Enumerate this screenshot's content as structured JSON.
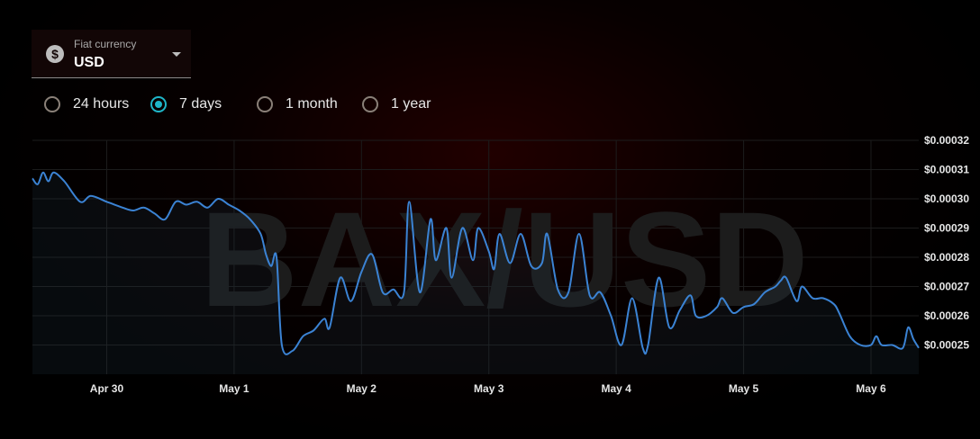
{
  "currency": {
    "label": "Fiat currency",
    "value": "USD",
    "icon": "dollar-icon",
    "icon_glyph": "$"
  },
  "ranges": [
    {
      "label": "24 hours",
      "selected": false
    },
    {
      "label": "7 days",
      "selected": true
    },
    {
      "label": "1 month",
      "selected": false
    },
    {
      "label": "1 year",
      "selected": false
    }
  ],
  "colors": {
    "line": "#3b83d4",
    "radio_selected": "#1fb6c9",
    "background": "#000000"
  },
  "chart_data": {
    "type": "line",
    "watermark": "BAX/USD",
    "grid": true,
    "y_axis_position": "right",
    "ylim": [
      0.00024,
      0.00032
    ],
    "y_ticks": [
      0.00025,
      0.00026,
      0.00027,
      0.00028,
      0.00029,
      0.0003,
      0.00031,
      0.00032
    ],
    "y_tick_labels": [
      "$0.00025",
      "$0.00026",
      "$0.00027",
      "$0.00028",
      "$0.00029",
      "$0.00030",
      "$0.00031",
      "$0.00032"
    ],
    "x_range": [
      "2024-04-29T10:00",
      "2024-05-06T09:00"
    ],
    "x_ticks": [
      "2024-04-30",
      "2024-05-01",
      "2024-05-02",
      "2024-05-03",
      "2024-05-04",
      "2024-05-05",
      "2024-05-06"
    ],
    "x_tick_labels": [
      "Apr 30",
      "May 1",
      "May 2",
      "May 3",
      "May 4",
      "May 5",
      "May 6"
    ],
    "series": [
      {
        "points": [
          [
            "2024-04-29T10:00",
            0.000307
          ],
          [
            "2024-04-29T11:00",
            0.000305
          ],
          [
            "2024-04-29T12:00",
            0.000309
          ],
          [
            "2024-04-29T13:00",
            0.000306
          ],
          [
            "2024-04-29T14:00",
            0.000309
          ],
          [
            "2024-04-29T16:00",
            0.000306
          ],
          [
            "2024-04-29T19:00",
            0.000299
          ],
          [
            "2024-04-29T21:00",
            0.000301
          ],
          [
            "2024-04-30T00:00",
            0.000299
          ],
          [
            "2024-04-30T03:00",
            0.000297
          ],
          [
            "2024-04-30T05:00",
            0.000296
          ],
          [
            "2024-04-30T07:00",
            0.000297
          ],
          [
            "2024-04-30T09:00",
            0.000295
          ],
          [
            "2024-04-30T11:00",
            0.000293
          ],
          [
            "2024-04-30T13:00",
            0.000299
          ],
          [
            "2024-04-30T15:00",
            0.000298
          ],
          [
            "2024-04-30T17:00",
            0.000299
          ],
          [
            "2024-04-30T19:00",
            0.000297
          ],
          [
            "2024-04-30T21:00",
            0.0003
          ],
          [
            "2024-04-30T23:00",
            0.000298
          ],
          [
            "2024-05-01T01:00",
            0.000296
          ],
          [
            "2024-05-01T03:00",
            0.000293
          ],
          [
            "2024-05-01T05:00",
            0.000288
          ],
          [
            "2024-05-01T06:00",
            0.000281
          ],
          [
            "2024-05-01T07:00",
            0.000277
          ],
          [
            "2024-05-01T08:00",
            0.00028
          ],
          [
            "2024-05-01T09:00",
            0.00025
          ],
          [
            "2024-05-01T11:00",
            0.000248
          ],
          [
            "2024-05-01T13:00",
            0.000253
          ],
          [
            "2024-05-01T15:00",
            0.000255
          ],
          [
            "2024-05-01T17:00",
            0.000259
          ],
          [
            "2024-05-01T18:00",
            0.000256
          ],
          [
            "2024-05-01T20:00",
            0.000273
          ],
          [
            "2024-05-01T22:00",
            0.000265
          ],
          [
            "2024-05-02T00:00",
            0.000275
          ],
          [
            "2024-05-02T02:00",
            0.000281
          ],
          [
            "2024-05-02T04:00",
            0.000268
          ],
          [
            "2024-05-02T06:00",
            0.000269
          ],
          [
            "2024-05-02T08:00",
            0.000268
          ],
          [
            "2024-05-02T09:00",
            0.000299
          ],
          [
            "2024-05-02T11:00",
            0.000268
          ],
          [
            "2024-05-02T13:00",
            0.000293
          ],
          [
            "2024-05-02T14:00",
            0.000279
          ],
          [
            "2024-05-02T16:00",
            0.00029
          ],
          [
            "2024-05-02T17:00",
            0.000273
          ],
          [
            "2024-05-02T19:00",
            0.00029
          ],
          [
            "2024-05-02T21:00",
            0.000279
          ],
          [
            "2024-05-02T22:00",
            0.00029
          ],
          [
            "2024-05-03T00:00",
            0.000282
          ],
          [
            "2024-05-03T01:00",
            0.000276
          ],
          [
            "2024-05-03T02:00",
            0.000288
          ],
          [
            "2024-05-03T04:00",
            0.000278
          ],
          [
            "2024-05-03T06:00",
            0.000288
          ],
          [
            "2024-05-03T08:00",
            0.000277
          ],
          [
            "2024-05-03T10:00",
            0.000278
          ],
          [
            "2024-05-03T11:00",
            0.000288
          ],
          [
            "2024-05-03T13:00",
            0.000269
          ],
          [
            "2024-05-03T15:00",
            0.000268
          ],
          [
            "2024-05-03T17:00",
            0.000288
          ],
          [
            "2024-05-03T19:00",
            0.000267
          ],
          [
            "2024-05-03T21:00",
            0.000268
          ],
          [
            "2024-05-03T23:00",
            0.00026
          ],
          [
            "2024-05-04T01:00",
            0.00025
          ],
          [
            "2024-05-04T03:00",
            0.000266
          ],
          [
            "2024-05-04T05:00",
            0.000249
          ],
          [
            "2024-05-04T06:00",
            0.00025
          ],
          [
            "2024-05-04T08:00",
            0.000273
          ],
          [
            "2024-05-04T10:00",
            0.000256
          ],
          [
            "2024-05-04T12:00",
            0.000262
          ],
          [
            "2024-05-04T14:00",
            0.000267
          ],
          [
            "2024-05-04T15:00",
            0.00026
          ],
          [
            "2024-05-04T17:00",
            0.00026
          ],
          [
            "2024-05-04T19:00",
            0.000263
          ],
          [
            "2024-05-04T20:00",
            0.000266
          ],
          [
            "2024-05-04T22:00",
            0.000261
          ],
          [
            "2024-05-05T00:00",
            0.000263
          ],
          [
            "2024-05-05T02:00",
            0.000264
          ],
          [
            "2024-05-05T04:00",
            0.000268
          ],
          [
            "2024-05-05T06:00",
            0.00027
          ],
          [
            "2024-05-05T07:00",
            0.000272
          ],
          [
            "2024-05-05T08:00",
            0.000273
          ],
          [
            "2024-05-05T10:00",
            0.000265
          ],
          [
            "2024-05-05T11:00",
            0.00027
          ],
          [
            "2024-05-05T13:00",
            0.000266
          ],
          [
            "2024-05-05T15:00",
            0.000266
          ],
          [
            "2024-05-05T17:00",
            0.000264
          ],
          [
            "2024-05-05T18:00",
            0.000261
          ],
          [
            "2024-05-05T20:00",
            0.000253
          ],
          [
            "2024-05-05T22:00",
            0.00025
          ],
          [
            "2024-05-06T00:00",
            0.00025
          ],
          [
            "2024-05-06T01:00",
            0.000253
          ],
          [
            "2024-05-06T02:00",
            0.00025
          ],
          [
            "2024-05-06T04:00",
            0.00025
          ],
          [
            "2024-05-06T06:00",
            0.000249
          ],
          [
            "2024-05-06T07:00",
            0.000256
          ],
          [
            "2024-05-06T08:00",
            0.000252
          ],
          [
            "2024-05-06T09:00",
            0.000249
          ]
        ]
      }
    ]
  }
}
